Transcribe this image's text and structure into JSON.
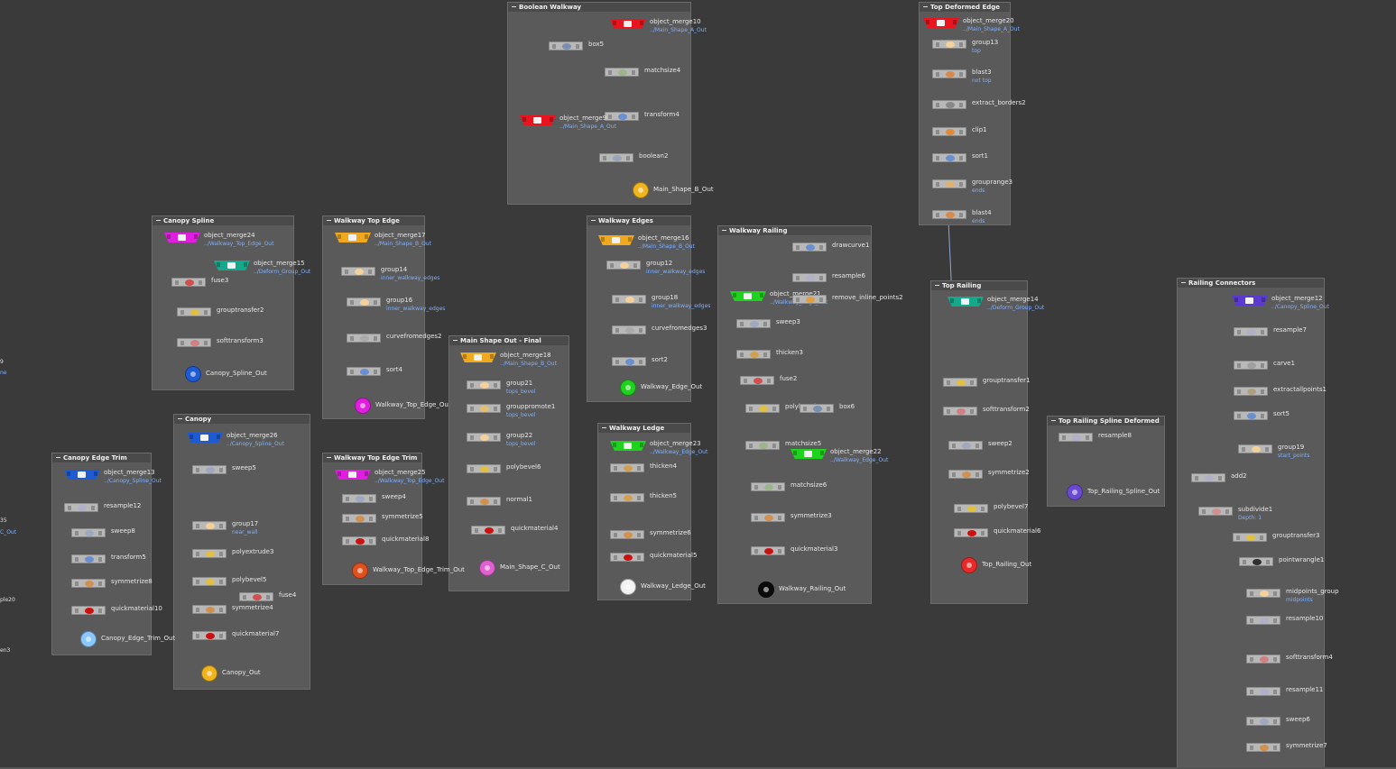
{
  "boxes": [
    {
      "title": "Boolean Walkway",
      "nodes": [
        {
          "label": "object_merge10",
          "sub": "../Main_Shape_A_Out",
          "kind": "merge",
          "color": "#e8141e"
        },
        {
          "label": "box5",
          "sub": "",
          "kind": "sop",
          "color": "#7a8eb0"
        },
        {
          "label": "matchsize4",
          "sub": "",
          "kind": "sop",
          "color": "#9bb58a"
        },
        {
          "label": "transform4",
          "sub": "",
          "kind": "sop",
          "color": "#6a8fd0"
        },
        {
          "label": "object_merge9",
          "sub": "../Main_Shape_A_Out",
          "kind": "merge",
          "color": "#e8141e"
        },
        {
          "label": "boolean2",
          "sub": "",
          "kind": "sop",
          "color": "#9aa3b8"
        },
        {
          "label": "Main_Shape_B_Out",
          "sub": "",
          "kind": "out",
          "color": "#f0b41e"
        }
      ]
    },
    {
      "title": "Top Deformed Edge",
      "nodes": [
        {
          "label": "object_merge20",
          "sub": "../Main_Shape_A_Out",
          "kind": "merge",
          "color": "#e8141e"
        },
        {
          "label": "group13",
          "sub": "top",
          "kind": "sop",
          "color": "#f3d19a"
        },
        {
          "label": "blast3",
          "sub": "not top",
          "kind": "sop",
          "color": "#d98a4a"
        },
        {
          "label": "extract_borders2",
          "sub": "",
          "kind": "sop",
          "color": "#888888"
        },
        {
          "label": "clip1",
          "sub": "",
          "kind": "sop",
          "color": "#e08a3a"
        },
        {
          "label": "sort1",
          "sub": "",
          "kind": "sop",
          "color": "#6a8fd0"
        },
        {
          "label": "grouprange3",
          "sub": "ends",
          "kind": "sop",
          "color": "#e0b070"
        },
        {
          "label": "blast4",
          "sub": "ends",
          "kind": "sop",
          "color": "#d98a4a"
        }
      ]
    },
    {
      "title": "Canopy Spline",
      "nodes": [
        {
          "label": "object_merge24",
          "sub": "../Walkway_Top_Edge_Out",
          "kind": "merge",
          "color": "#e01ee0"
        },
        {
          "label": "object_merge15",
          "sub": "../Deform_Group_Out",
          "kind": "merge",
          "color": "#16a88a"
        },
        {
          "label": "fuse3",
          "sub": "",
          "kind": "sop",
          "color": "#d05050"
        },
        {
          "label": "grouptransfer2",
          "sub": "",
          "kind": "sop",
          "color": "#e0c040"
        },
        {
          "label": "softtransform3",
          "sub": "",
          "kind": "sop",
          "color": "#d08080"
        },
        {
          "label": "Canopy_Spline_Out",
          "sub": "",
          "kind": "out",
          "color": "#1e5ad2"
        }
      ]
    },
    {
      "title": "Walkway Top Edge",
      "nodes": [
        {
          "label": "object_merge17",
          "sub": "../Main_Shape_B_Out",
          "kind": "merge",
          "color": "#f0a81e"
        },
        {
          "label": "group14",
          "sub": "inner_walkway_edges",
          "kind": "sop",
          "color": "#f3d19a"
        },
        {
          "label": "group16",
          "sub": "inner_walkway_edges",
          "kind": "sop",
          "color": "#f3d19a"
        },
        {
          "label": "curvefromedges2",
          "sub": "",
          "kind": "sop",
          "color": "#aaaaaa"
        },
        {
          "label": "sort4",
          "sub": "",
          "kind": "sop",
          "color": "#6a8fd0"
        },
        {
          "label": "Walkway_Top_Edge_Out",
          "sub": "",
          "kind": "out",
          "color": "#e01ee0"
        }
      ]
    },
    {
      "title": "Walkway Edges",
      "nodes": [
        {
          "label": "object_merge16",
          "sub": "../Main_Shape_B_Out",
          "kind": "merge",
          "color": "#f0a81e"
        },
        {
          "label": "group12",
          "sub": "inner_walkway_edges",
          "kind": "sop",
          "color": "#f3d19a"
        },
        {
          "label": "group18",
          "sub": "inner_walkway_edges",
          "kind": "sop",
          "color": "#f3d19a"
        },
        {
          "label": "curvefromedges3",
          "sub": "",
          "kind": "sop",
          "color": "#aaaaaa"
        },
        {
          "label": "sort2",
          "sub": "",
          "kind": "sop",
          "color": "#6a8fd0"
        },
        {
          "label": "Walkway_Edge_Out",
          "sub": "",
          "kind": "out",
          "color": "#1ed21e"
        }
      ]
    },
    {
      "title": "Walkway Railing",
      "nodes": [
        {
          "label": "drawcurve1",
          "sub": "",
          "kind": "sop",
          "color": "#6a8fd0"
        },
        {
          "label": "resample6",
          "sub": "",
          "kind": "sop",
          "color": "#b0b0c8"
        },
        {
          "label": "object_merge21",
          "sub": "../Walkway_Edge_Out",
          "kind": "merge",
          "color": "#1ed21e"
        },
        {
          "label": "remove_inline_points2",
          "sub": "",
          "kind": "sop",
          "color": "#e0a040"
        },
        {
          "label": "sweep3",
          "sub": "",
          "kind": "sop",
          "color": "#a0a8c0"
        },
        {
          "label": "thicken3",
          "sub": "",
          "kind": "sop",
          "color": "#d0a050"
        },
        {
          "label": "fuse2",
          "sub": "",
          "kind": "sop",
          "color": "#d05050"
        },
        {
          "label": "polybevel6",
          "sub": "",
          "kind": "sop",
          "color": "#e0c040"
        },
        {
          "label": "box6",
          "sub": "",
          "kind": "sop",
          "color": "#7a8eb0"
        },
        {
          "label": "matchsize5",
          "sub": "",
          "kind": "sop",
          "color": "#9bb58a"
        },
        {
          "label": "object_merge22",
          "sub": "../Walkway_Edge_Out",
          "kind": "merge",
          "color": "#1ed21e"
        },
        {
          "label": "matchsize6",
          "sub": "",
          "kind": "sop",
          "color": "#9bb58a"
        },
        {
          "label": "symmetrize3",
          "sub": "",
          "kind": "sop",
          "color": "#d09050"
        },
        {
          "label": "quickmaterial3",
          "sub": "",
          "kind": "sop",
          "color": "#cc1010"
        },
        {
          "label": "Walkway_Railing_Out",
          "sub": "",
          "kind": "out",
          "color": "#0a0a0a"
        }
      ]
    },
    {
      "title": "Top Railing",
      "nodes": [
        {
          "label": "object_merge14",
          "sub": "../Deform_Group_Out",
          "kind": "merge",
          "color": "#16a88a"
        },
        {
          "label": "grouptransfer1",
          "sub": "",
          "kind": "sop",
          "color": "#e0c040"
        },
        {
          "label": "softtransform2",
          "sub": "",
          "kind": "sop",
          "color": "#d08080"
        },
        {
          "label": "sweep2",
          "sub": "",
          "kind": "sop",
          "color": "#a0a8c0"
        },
        {
          "label": "symmetrize2",
          "sub": "",
          "kind": "sop",
          "color": "#d09050"
        },
        {
          "label": "polybevel7",
          "sub": "",
          "kind": "sop",
          "color": "#e0c040"
        },
        {
          "label": "quickmaterial6",
          "sub": "",
          "kind": "sop",
          "color": "#cc1010"
        },
        {
          "label": "Top_Railing_Out",
          "sub": "",
          "kind": "out",
          "color": "#e82a2a"
        }
      ]
    },
    {
      "title": "Top Railing Spline Deformed",
      "nodes": [
        {
          "label": "resample8",
          "sub": "",
          "kind": "sop",
          "color": "#b0b0c8"
        },
        {
          "label": "Top_Railing_Spline_Out",
          "sub": "",
          "kind": "out",
          "color": "#6a4ad0"
        }
      ]
    },
    {
      "title": "Railing Connectors",
      "nodes": [
        {
          "label": "object_merge12",
          "sub": "../Canopy_Spline_Out",
          "kind": "merge",
          "color": "#5a3ad0"
        },
        {
          "label": "resample7",
          "sub": "",
          "kind": "sop",
          "color": "#b0b0c8"
        },
        {
          "label": "carve1",
          "sub": "",
          "kind": "sop",
          "color": "#a0a0a0"
        },
        {
          "label": "extractallpoints1",
          "sub": "",
          "kind": "sop",
          "color": "#b0a080"
        },
        {
          "label": "sort5",
          "sub": "",
          "kind": "sop",
          "color": "#6a8fd0"
        },
        {
          "label": "group19",
          "sub": "start_points",
          "kind": "sop",
          "color": "#f3d19a"
        },
        {
          "label": "add2",
          "sub": "",
          "kind": "sop",
          "color": "#b0b0c8"
        },
        {
          "label": "subdivide1",
          "sub": "Depth: 1",
          "kind": "sop",
          "color": "#d09090"
        },
        {
          "label": "grouptransfer3",
          "sub": "",
          "kind": "sop",
          "color": "#e0c040"
        },
        {
          "label": "pointwrangle1",
          "sub": "",
          "kind": "sop",
          "color": "#303030"
        },
        {
          "label": "midpoints_group",
          "sub": "midpoints",
          "kind": "sop",
          "color": "#f3d19a"
        },
        {
          "label": "resample10",
          "sub": "",
          "kind": "sop",
          "color": "#b0b0c8"
        },
        {
          "label": "softtransform4",
          "sub": "",
          "kind": "sop",
          "color": "#d08080"
        },
        {
          "label": "resample11",
          "sub": "",
          "kind": "sop",
          "color": "#b0b0c8"
        },
        {
          "label": "sweep6",
          "sub": "",
          "kind": "sop",
          "color": "#a0a8c0"
        },
        {
          "label": "symmetrize7",
          "sub": "",
          "kind": "sop",
          "color": "#d09050"
        }
      ]
    },
    {
      "title": "Main Shape Out - Final",
      "nodes": [
        {
          "label": "object_merge18",
          "sub": "../Main_Shape_B_Out",
          "kind": "merge",
          "color": "#f0a81e"
        },
        {
          "label": "group21",
          "sub": "tops_bevel",
          "kind": "sop",
          "color": "#f3d19a"
        },
        {
          "label": "grouppromote1",
          "sub": "tops_bevel",
          "kind": "sop",
          "color": "#e0c070"
        },
        {
          "label": "group22",
          "sub": "tops_bevel",
          "kind": "sop",
          "color": "#f3d19a"
        },
        {
          "label": "polybevel6",
          "sub": "",
          "kind": "sop",
          "color": "#e0c040"
        },
        {
          "label": "normal1",
          "sub": "",
          "kind": "sop",
          "color": "#d09050"
        },
        {
          "label": "quickmaterial4",
          "sub": "",
          "kind": "sop",
          "color": "#cc1010"
        },
        {
          "label": "Main_Shape_C_Out",
          "sub": "",
          "kind": "out",
          "color": "#e060d0"
        }
      ]
    },
    {
      "title": "Walkway Ledge",
      "nodes": [
        {
          "label": "object_merge23",
          "sub": "../Walkway_Edge_Out",
          "kind": "merge",
          "color": "#1ed21e"
        },
        {
          "label": "thicken4",
          "sub": "",
          "kind": "sop",
          "color": "#d0a050"
        },
        {
          "label": "thicken5",
          "sub": "",
          "kind": "sop",
          "color": "#d0a050"
        },
        {
          "label": "symmetrize6",
          "sub": "",
          "kind": "sop",
          "color": "#d09050"
        },
        {
          "label": "quickmaterial5",
          "sub": "",
          "kind": "sop",
          "color": "#cc1010"
        },
        {
          "label": "Walkway_Ledge_Out",
          "sub": "",
          "kind": "out",
          "color": "#f2f2f2"
        }
      ]
    },
    {
      "title": "Canopy",
      "nodes": [
        {
          "label": "object_merge26",
          "sub": "../Canopy_Spline_Out",
          "kind": "merge",
          "color": "#1e5ad2"
        },
        {
          "label": "sweep5",
          "sub": "",
          "kind": "sop",
          "color": "#a0a8c0"
        },
        {
          "label": "group17",
          "sub": "near_wall",
          "kind": "sop",
          "color": "#f3d19a"
        },
        {
          "label": "polyextrude3",
          "sub": "",
          "kind": "sop",
          "color": "#e0c040"
        },
        {
          "label": "polybevel5",
          "sub": "",
          "kind": "sop",
          "color": "#e0c040"
        },
        {
          "label": "fuse4",
          "sub": "",
          "kind": "sop",
          "color": "#d05050"
        },
        {
          "label": "symmetrize4",
          "sub": "",
          "kind": "sop",
          "color": "#d09050"
        },
        {
          "label": "quickmaterial7",
          "sub": "",
          "kind": "sop",
          "color": "#cc1010"
        },
        {
          "label": "Canopy_Out",
          "sub": "",
          "kind": "out",
          "color": "#f0b41e"
        }
      ]
    },
    {
      "title": "Walkway Top Edge Trim",
      "nodes": [
        {
          "label": "object_merge25",
          "sub": "../Walkway_Top_Edge_Out",
          "kind": "merge",
          "color": "#e01ee0"
        },
        {
          "label": "sweep4",
          "sub": "",
          "kind": "sop",
          "color": "#a0a8c0"
        },
        {
          "label": "symmetrize5",
          "sub": "",
          "kind": "sop",
          "color": "#d09050"
        },
        {
          "label": "quickmaterial8",
          "sub": "",
          "kind": "sop",
          "color": "#cc1010"
        },
        {
          "label": "Walkway_Top_Edge_Trim_Out",
          "sub": "",
          "kind": "out",
          "color": "#e0501e"
        }
      ]
    },
    {
      "title": "Canopy Edge Trim",
      "nodes": [
        {
          "label": "object_merge13",
          "sub": "../Canopy_Spline_Out",
          "kind": "merge",
          "color": "#1e5ad2"
        },
        {
          "label": "resample12",
          "sub": "",
          "kind": "sop",
          "color": "#b0b0c8"
        },
        {
          "label": "sweep8",
          "sub": "",
          "kind": "sop",
          "color": "#a0a8c0"
        },
        {
          "label": "transform5",
          "sub": "",
          "kind": "sop",
          "color": "#6a8fd0"
        },
        {
          "label": "symmetrize8",
          "sub": "",
          "kind": "sop",
          "color": "#d09050"
        },
        {
          "label": "quickmaterial10",
          "sub": "",
          "kind": "sop",
          "color": "#cc1010"
        },
        {
          "label": "Canopy_Edge_Trim_Out",
          "sub": "",
          "kind": "out",
          "color": "#8ac8ff"
        }
      ]
    }
  ],
  "edge_fragments": [
    {
      "text": "9",
      "style": "white"
    },
    {
      "text": "ne",
      "style": "blue"
    },
    {
      "text": "35",
      "style": "white"
    },
    {
      "text": "C_Out",
      "style": "blue"
    },
    {
      "text": "ple20",
      "style": "white"
    },
    {
      "text": "en3",
      "style": "white"
    }
  ]
}
